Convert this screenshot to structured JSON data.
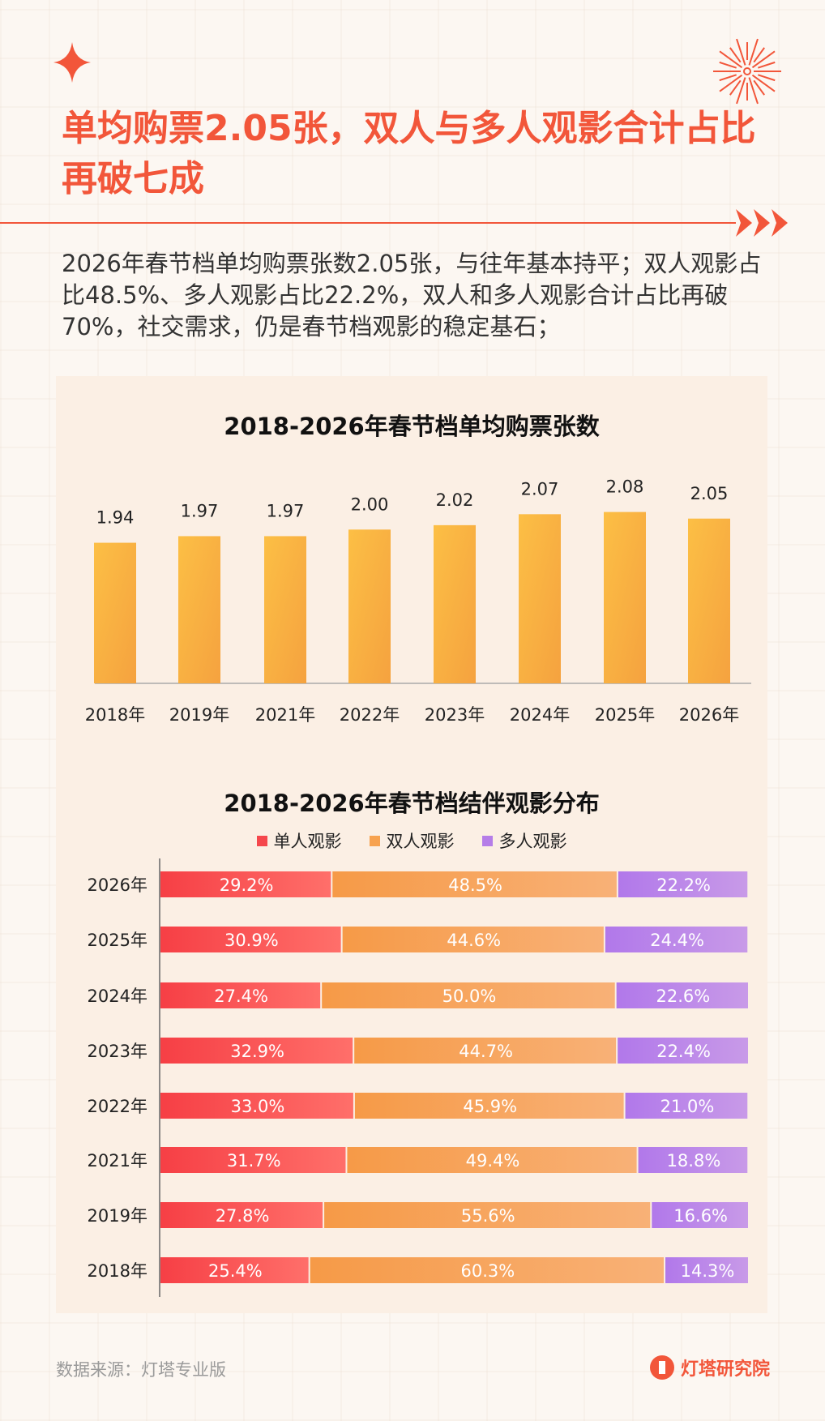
{
  "header": {
    "title": "单均购票2.05张，双人与多人观影合计占比再破七成",
    "paragraph": "2026年春节档单均购票张数2.05张，与往年基本持平；双人观影占比48.5%、多人观影占比22.2%，双人和多人观影合计占比再破70%，社交需求，仍是春节档观影的稳定基石；",
    "accent_color": "#f2563a",
    "icons": [
      "sparkle-star-icon",
      "firework-icon",
      "triple-arrow-icon"
    ]
  },
  "chart_data": [
    {
      "type": "bar",
      "title": "2018-2026年春节档单均购票张数",
      "categories": [
        "2018年",
        "2019年",
        "2021年",
        "2022年",
        "2023年",
        "2024年",
        "2025年",
        "2026年"
      ],
      "values": [
        1.94,
        1.97,
        1.97,
        2.0,
        2.02,
        2.07,
        2.08,
        2.05
      ],
      "value_labels": [
        "1.94",
        "1.97",
        "1.97",
        "2.00",
        "2.02",
        "2.07",
        "2.08",
        "2.05"
      ],
      "ylim": [
        1.3,
        2.2
      ],
      "grid": false,
      "color": "#fbb944"
    },
    {
      "type": "bar",
      "orientation": "horizontal-stacked-100",
      "title": "2018-2026年春节档结伴观影分布",
      "categories": [
        "2026年",
        "2025年",
        "2024年",
        "2023年",
        "2022年",
        "2021年",
        "2019年",
        "2018年"
      ],
      "series": [
        {
          "name": "单人观影",
          "color": "#f5474c",
          "values": [
            29.2,
            30.9,
            27.4,
            32.9,
            33.0,
            31.7,
            27.8,
            25.4
          ]
        },
        {
          "name": "双人观影",
          "color": "#f7a24f",
          "values": [
            48.5,
            44.6,
            50.0,
            44.7,
            45.9,
            49.4,
            55.6,
            60.3
          ]
        },
        {
          "name": "多人观影",
          "color": "#b57de8",
          "values": [
            22.2,
            24.4,
            22.6,
            22.4,
            21.0,
            18.8,
            16.6,
            14.3
          ]
        }
      ],
      "value_labels": [
        [
          "29.2%",
          "48.5%",
          "22.2%"
        ],
        [
          "30.9%",
          "44.6%",
          "24.4%"
        ],
        [
          "27.4%",
          "50.0%",
          "22.6%"
        ],
        [
          "32.9%",
          "44.7%",
          "22.4%"
        ],
        [
          "33.0%",
          "45.9%",
          "21.0%"
        ],
        [
          "31.7%",
          "49.4%",
          "18.8%"
        ],
        [
          "27.8%",
          "55.6%",
          "16.6%"
        ],
        [
          "25.4%",
          "60.3%",
          "14.3%"
        ]
      ],
      "legend": "top"
    }
  ],
  "footer": {
    "source": "数据来源：灯塔专业版",
    "brand": "灯塔研究院"
  }
}
